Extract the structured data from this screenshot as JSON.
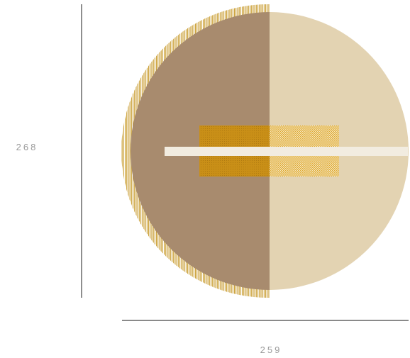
{
  "dimensions": {
    "height": {
      "value": "268"
    },
    "width": {
      "value": "259"
    }
  },
  "colors": {
    "background": "#ffffff",
    "dimension_line": "#444444",
    "dimension_text": "#9a9a9a",
    "disc_left_half": "#a88b6e",
    "disc_right_half": "#e3d3b2",
    "outer_ring_hatch": "#c79a2a",
    "square_left_fill": "#c98f17",
    "square_right_fill": "#e0a92f",
    "horizontal_bar": "#f2ece0"
  }
}
